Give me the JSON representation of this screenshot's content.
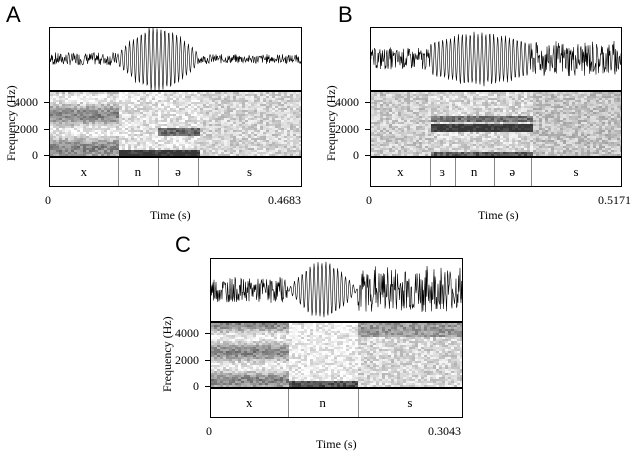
{
  "panels": [
    {
      "letter": "A",
      "segments": [
        "x",
        "n",
        "ə",
        "s"
      ],
      "seg_bounds": [
        0,
        0.27,
        0.43,
        0.59,
        1.0
      ],
      "x_start": "0",
      "x_end": "0.4683",
      "xlabel": "Time (s)",
      "ylabel": "Frequency (Hz)",
      "yticks": [
        "4000",
        "2000",
        "0"
      ]
    },
    {
      "letter": "B",
      "segments": [
        "x",
        "ɜ",
        "n",
        "ə",
        "s"
      ],
      "seg_bounds": [
        0,
        0.235,
        0.335,
        0.49,
        0.64,
        1.0
      ],
      "x_start": "0",
      "x_end": "0.5171",
      "xlabel": "Time (s)",
      "ylabel": "Frequency (Hz)",
      "yticks": [
        "4000",
        "2000",
        "0"
      ]
    },
    {
      "letter": "C",
      "segments": [
        "x",
        "n",
        "s"
      ],
      "seg_bounds": [
        0,
        0.305,
        0.585,
        1.0
      ],
      "x_start": "0",
      "x_end": "0.3043",
      "xlabel": "Time (s)",
      "ylabel": "Frequency (Hz)",
      "yticks": [
        "4000",
        "2000",
        "0"
      ]
    }
  ]
}
